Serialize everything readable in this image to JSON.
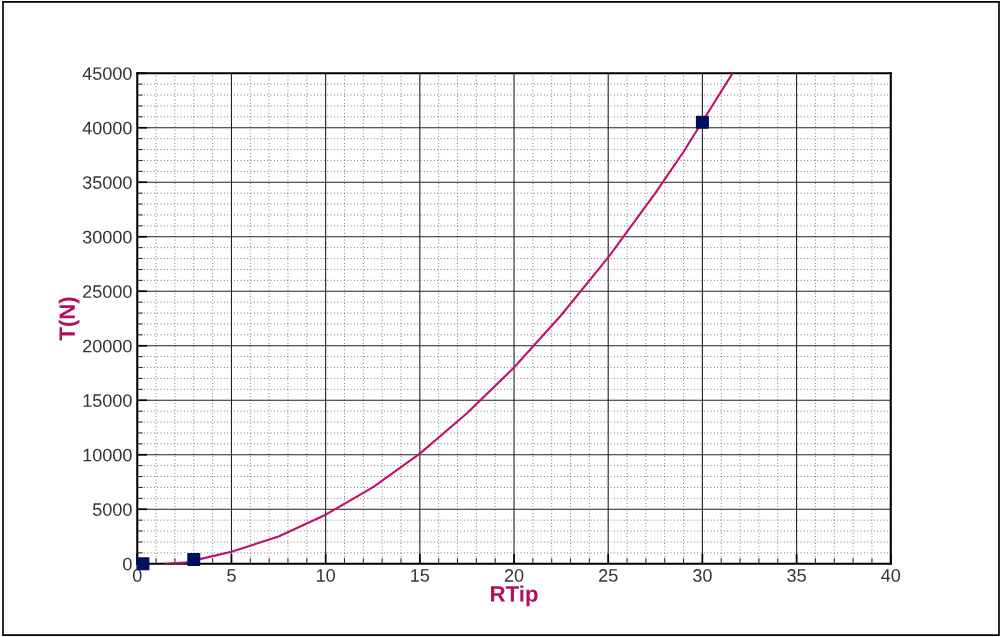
{
  "chart_data": {
    "type": "line",
    "xlabel": "RTip",
    "ylabel": "T(N)",
    "xlim": [
      0,
      40
    ],
    "xticks": [
      0,
      5,
      10,
      15,
      20,
      25,
      30,
      35,
      40
    ],
    "ylim": [
      0,
      45000
    ],
    "yticks": [
      0,
      5000,
      10000,
      15000,
      20000,
      25000,
      30000,
      35000,
      40000,
      45000
    ],
    "grid": true,
    "series": [
      {
        "color": "#c0106a",
        "marker": "none",
        "x": [
          1.5,
          2.5,
          4,
          5,
          7.5,
          10,
          12.5,
          15,
          17.5,
          20,
          22.5,
          25,
          27.5,
          29,
          31.6
        ],
        "values": [
          0,
          100,
          700,
          1100,
          2500,
          4500,
          7000,
          10100,
          13800,
          18000,
          22800,
          28100,
          34000,
          37800,
          45000
        ]
      },
      {
        "type": "scatter",
        "color": "#001060",
        "marker": "square",
        "x": [
          0.3,
          3,
          30
        ],
        "values": [
          0,
          400,
          40500
        ]
      }
    ]
  }
}
